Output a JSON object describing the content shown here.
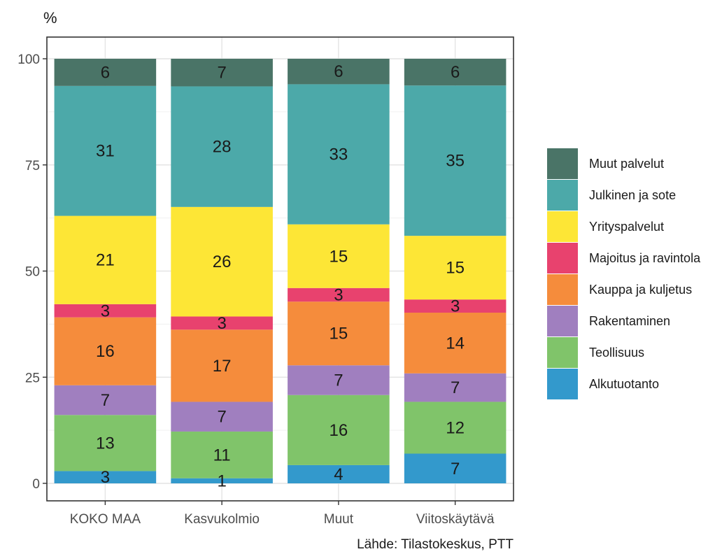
{
  "chart_data": {
    "type": "bar",
    "stacked": true,
    "ylabel": "%",
    "caption": "Lähde: Tilastokeskus, PTT",
    "ylim": [
      0,
      100
    ],
    "yticks": [
      0,
      25,
      50,
      75,
      100
    ],
    "grid": true,
    "legend_position": "right",
    "categories": [
      "KOKO MAA",
      "Kasvukolmio",
      "Muut",
      "Viitoskäytävä"
    ],
    "series": [
      {
        "name": "Alkutuotanto",
        "color": "#3399cc",
        "values": [
          2.9,
          1.2,
          4.3,
          7.0
        ],
        "labels": [
          "3",
          "1",
          "4",
          "7"
        ]
      },
      {
        "name": "Teollisuus",
        "color": "#80c46a",
        "values": [
          13.2,
          11.0,
          16.5,
          12.2
        ],
        "labels": [
          "13",
          "11",
          "16",
          "12"
        ]
      },
      {
        "name": "Rakentaminen",
        "color": "#a07fbf",
        "values": [
          7.0,
          7.0,
          7.0,
          6.7
        ],
        "labels": [
          "7",
          "7",
          "7",
          "7"
        ]
      },
      {
        "name": "Kauppa ja kuljetus",
        "color": "#f58c3c",
        "values": [
          16.0,
          17.0,
          15.0,
          14.3
        ],
        "labels": [
          "16",
          "17",
          "15",
          "14"
        ]
      },
      {
        "name": "Majoitus ja ravintola",
        "color": "#e8426e",
        "values": [
          3.1,
          3.1,
          3.2,
          3.1
        ],
        "labels": [
          "3",
          "3",
          "3",
          "3"
        ]
      },
      {
        "name": "Yrityspalvelut",
        "color": "#fde636",
        "values": [
          20.8,
          25.8,
          15.0,
          15.0
        ],
        "labels": [
          "21",
          "26",
          "15",
          "15"
        ]
      },
      {
        "name": "Julkinen ja sote",
        "color": "#4ca9a9",
        "values": [
          30.6,
          28.4,
          33.0,
          35.4
        ],
        "labels": [
          "31",
          "28",
          "33",
          "35"
        ]
      },
      {
        "name": "Muut palvelut",
        "color": "#4a7467",
        "values": [
          6.4,
          6.5,
          6.0,
          6.3
        ],
        "labels": [
          "6",
          "7",
          "6",
          "6"
        ]
      }
    ]
  }
}
